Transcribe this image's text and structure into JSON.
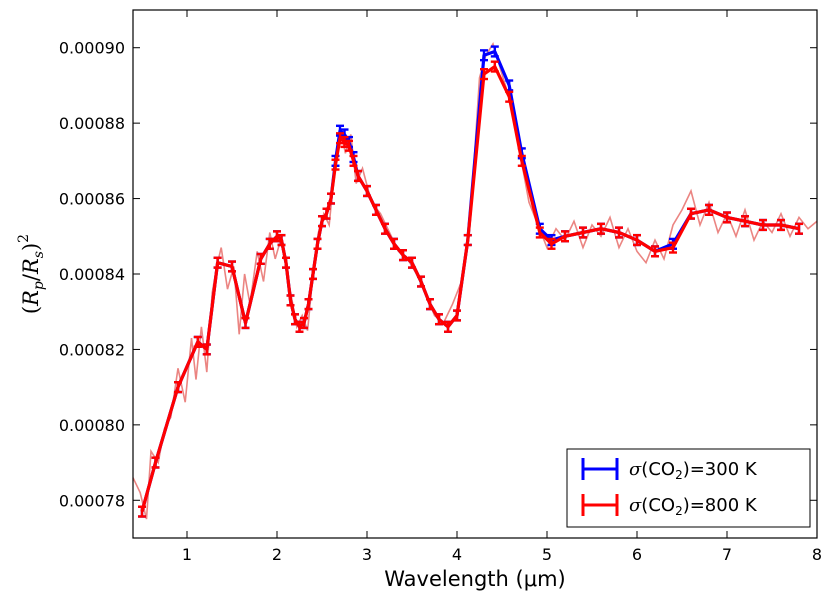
{
  "chart_data": {
    "type": "line",
    "title": "",
    "xlabel": "Wavelength (μm)",
    "ylabel": "(R_p/R_s)^2",
    "xlim": [
      0.4,
      8.0
    ],
    "ylim": [
      0.00077,
      0.00091
    ],
    "x_ticks": [
      "1",
      "2",
      "3",
      "4",
      "5",
      "6",
      "7",
      "8"
    ],
    "x_tick_values": [
      1,
      2,
      3,
      4,
      5,
      6,
      7,
      8
    ],
    "y_ticks": [
      "0.00078",
      "0.00080",
      "0.00082",
      "0.00084",
      "0.00086",
      "0.00088",
      "0.00090"
    ],
    "y_tick_values": [
      0.00078,
      0.0008,
      0.00082,
      0.00084,
      0.00086,
      0.00088,
      0.0009
    ],
    "grid": false,
    "legend_position": "bottom-right",
    "legend": [
      {
        "prefix": "σ",
        "text_before_sub": "(CO",
        "sub": "2",
        "text_after_sub": ")=300 K",
        "color": "#0000ff"
      },
      {
        "prefix": "σ",
        "text_before_sub": "(CO",
        "sub": "2",
        "text_after_sub": ")=800 K",
        "color": "#ff0000"
      }
    ],
    "series": [
      {
        "name": "σ(CO2)=300 K",
        "color": "#0000ff",
        "x": [
          0.5,
          0.65,
          0.9,
          1.12,
          1.22,
          1.34,
          1.5,
          1.65,
          1.82,
          1.92,
          2.0,
          2.05,
          2.1,
          2.15,
          2.2,
          2.25,
          2.3,
          2.35,
          2.4,
          2.45,
          2.5,
          2.55,
          2.6,
          2.65,
          2.7,
          2.75,
          2.8,
          2.85,
          2.9,
          3.0,
          3.1,
          3.2,
          3.3,
          3.4,
          3.5,
          3.6,
          3.7,
          3.8,
          3.9,
          4.0,
          4.12,
          4.3,
          4.42,
          4.58,
          4.72,
          4.92,
          5.05,
          5.2,
          5.4,
          5.6,
          5.8,
          6.0,
          6.2,
          6.4,
          6.6,
          6.8,
          7.0,
          7.2,
          7.4,
          7.6,
          7.8
        ],
        "y": [
          0.000777,
          0.00079,
          0.00081,
          0.000822,
          0.00082,
          0.000843,
          0.000842,
          0.000827,
          0.000844,
          0.000848,
          0.00085,
          0.000849,
          0.000843,
          0.000833,
          0.000828,
          0.000826,
          0.000827,
          0.000832,
          0.00084,
          0.000848,
          0.000854,
          0.000856,
          0.00086,
          0.00087,
          0.000878,
          0.000877,
          0.000875,
          0.000871,
          0.000866,
          0.000862,
          0.000857,
          0.000852,
          0.000848,
          0.000845,
          0.000843,
          0.000838,
          0.000832,
          0.000828,
          0.000826,
          0.000829,
          0.000849,
          0.000898,
          0.000899,
          0.00089,
          0.000872,
          0.000852,
          0.000849,
          0.00085,
          0.000851,
          0.000852,
          0.000851,
          0.000849,
          0.000846,
          0.000848,
          0.000856,
          0.000857,
          0.000855,
          0.000854,
          0.000853,
          0.000853,
          0.000852
        ],
        "yerr": 1.3e-06
      },
      {
        "name": "σ(CO2)=800 K",
        "color": "#ff0000",
        "x": [
          0.5,
          0.65,
          0.9,
          1.12,
          1.22,
          1.34,
          1.5,
          1.65,
          1.82,
          1.92,
          2.0,
          2.05,
          2.1,
          2.15,
          2.2,
          2.25,
          2.3,
          2.35,
          2.4,
          2.45,
          2.5,
          2.55,
          2.6,
          2.65,
          2.7,
          2.75,
          2.8,
          2.85,
          2.9,
          3.0,
          3.1,
          3.2,
          3.3,
          3.4,
          3.5,
          3.6,
          3.7,
          3.8,
          3.9,
          4.0,
          4.12,
          4.3,
          4.42,
          4.58,
          4.72,
          4.92,
          5.05,
          5.2,
          5.4,
          5.6,
          5.8,
          6.0,
          6.2,
          6.4,
          6.6,
          6.8,
          7.0,
          7.2,
          7.4,
          7.6,
          7.8
        ],
        "y": [
          0.000777,
          0.00079,
          0.00081,
          0.000822,
          0.00082,
          0.000843,
          0.000842,
          0.000827,
          0.000844,
          0.000848,
          0.00085,
          0.000849,
          0.000843,
          0.000833,
          0.000828,
          0.000826,
          0.000827,
          0.000832,
          0.00084,
          0.000848,
          0.000854,
          0.000856,
          0.00086,
          0.000869,
          0.000876,
          0.000875,
          0.000874,
          0.00087,
          0.000866,
          0.000862,
          0.000857,
          0.000852,
          0.000848,
          0.000845,
          0.000843,
          0.000838,
          0.000832,
          0.000828,
          0.000826,
          0.000829,
          0.000849,
          0.000893,
          0.000895,
          0.000887,
          0.00087,
          0.000851,
          0.000848,
          0.00085,
          0.000851,
          0.000852,
          0.000851,
          0.000849,
          0.000846,
          0.000847,
          0.000856,
          0.000857,
          0.000855,
          0.000854,
          0.000853,
          0.000853,
          0.000852
        ],
        "yerr": 1.3e-06
      }
    ],
    "background_spectrum": {
      "color": "#e8706c",
      "x": [
        0.4,
        0.48,
        0.55,
        0.6,
        0.68,
        0.75,
        0.82,
        0.9,
        0.98,
        1.05,
        1.1,
        1.16,
        1.22,
        1.28,
        1.33,
        1.38,
        1.45,
        1.52,
        1.58,
        1.64,
        1.7,
        1.78,
        1.85,
        1.92,
        1.98,
        2.04,
        2.1,
        2.16,
        2.22,
        2.28,
        2.34,
        2.4,
        2.46,
        2.52,
        2.58,
        2.64,
        2.7,
        2.76,
        2.82,
        2.88,
        2.95,
        3.05,
        3.15,
        3.25,
        3.35,
        3.45,
        3.55,
        3.65,
        3.75,
        3.85,
        3.95,
        4.05,
        4.15,
        4.25,
        4.32,
        4.4,
        4.5,
        4.6,
        4.7,
        4.8,
        4.9,
        5.0,
        5.1,
        5.2,
        5.3,
        5.4,
        5.5,
        5.6,
        5.7,
        5.8,
        5.9,
        6.0,
        6.1,
        6.2,
        6.3,
        6.4,
        6.5,
        6.6,
        6.7,
        6.8,
        6.9,
        7.0,
        7.1,
        7.2,
        7.3,
        7.4,
        7.5,
        7.6,
        7.7,
        7.8,
        7.9,
        8.0
      ],
      "y": [
        0.000786,
        0.000782,
        0.000775,
        0.000793,
        0.00079,
        0.000799,
        0.000802,
        0.000815,
        0.000806,
        0.000823,
        0.000812,
        0.000826,
        0.000814,
        0.000835,
        0.000842,
        0.000847,
        0.000836,
        0.000842,
        0.000824,
        0.00084,
        0.000832,
        0.000846,
        0.000838,
        0.000851,
        0.000844,
        0.000849,
        0.000842,
        0.000834,
        0.000826,
        0.000829,
        0.000825,
        0.00084,
        0.000851,
        0.000856,
        0.000853,
        0.000868,
        0.000879,
        0.000872,
        0.000877,
        0.000864,
        0.000868,
        0.000859,
        0.000856,
        0.000851,
        0.000846,
        0.000844,
        0.00084,
        0.000835,
        0.000829,
        0.000827,
        0.000832,
        0.000838,
        0.000855,
        0.000892,
        0.000898,
        0.000901,
        0.000893,
        0.000885,
        0.000872,
        0.000859,
        0.000853,
        0.000847,
        0.000852,
        0.000849,
        0.000854,
        0.000847,
        0.000853,
        0.00085,
        0.000855,
        0.000847,
        0.000852,
        0.000846,
        0.000843,
        0.000849,
        0.000844,
        0.000853,
        0.000857,
        0.000862,
        0.000853,
        0.000859,
        0.000851,
        0.000856,
        0.00085,
        0.000857,
        0.000849,
        0.000854,
        0.000851,
        0.000856,
        0.00085,
        0.000855,
        0.000852,
        0.000854
      ]
    }
  }
}
